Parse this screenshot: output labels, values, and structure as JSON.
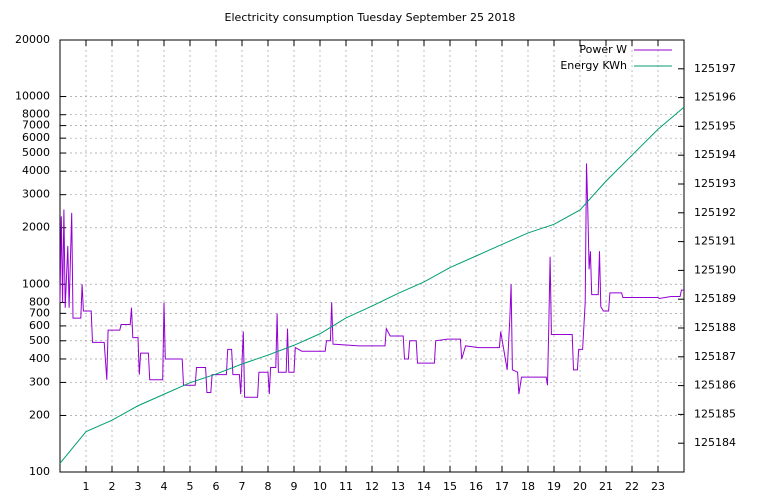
{
  "chart_data": {
    "type": "line",
    "title": "Electricity consumption Tuesday September 25 2018",
    "log_y": true,
    "grid": true,
    "legend": "top-right",
    "xlim": [
      0,
      24
    ],
    "xticks": [
      1,
      2,
      3,
      4,
      5,
      6,
      7,
      8,
      9,
      10,
      11,
      12,
      13,
      14,
      15,
      16,
      17,
      18,
      19,
      20,
      21,
      22,
      23
    ],
    "ylim": [
      100,
      20000
    ],
    "yticks": [
      100,
      200,
      300,
      400,
      500,
      600,
      700,
      800,
      1000,
      2000,
      3000,
      4000,
      5000,
      6000,
      7000,
      8000,
      10000,
      20000
    ],
    "y2lim": [
      125183,
      125198
    ],
    "y2ticks": [
      125184,
      125185,
      125186,
      125187,
      125188,
      125189,
      125190,
      125191,
      125192,
      125193,
      125194,
      125195,
      125196,
      125197
    ],
    "series": [
      {
        "name": "Power W",
        "color": "#9400d3",
        "x": [
          0.0,
          0.05,
          0.1,
          0.15,
          0.2,
          0.3,
          0.35,
          0.45,
          0.5,
          0.8,
          0.85,
          0.9,
          1.2,
          1.25,
          1.7,
          1.8,
          1.85,
          2.3,
          2.35,
          2.7,
          2.75,
          2.8,
          3.0,
          3.05,
          3.1,
          3.4,
          3.45,
          3.95,
          4.0,
          4.05,
          4.7,
          4.75,
          5.2,
          5.25,
          5.6,
          5.65,
          5.8,
          5.85,
          6.4,
          6.45,
          6.6,
          6.65,
          6.9,
          6.95,
          7.05,
          7.1,
          7.6,
          7.65,
          8.0,
          8.05,
          8.1,
          8.3,
          8.35,
          8.4,
          8.7,
          8.75,
          8.8,
          9.0,
          9.05,
          9.3,
          10.2,
          10.25,
          10.4,
          10.45,
          10.5,
          11.5,
          12.5,
          12.55,
          12.7,
          13.2,
          13.25,
          13.4,
          13.45,
          13.7,
          13.75,
          14.4,
          14.45,
          14.9,
          15.4,
          15.45,
          15.6,
          16.1,
          16.9,
          16.95,
          17.2,
          17.3,
          17.35,
          17.4,
          17.6,
          17.65,
          17.75,
          18.7,
          18.75,
          18.8,
          18.85,
          18.9,
          19.7,
          19.75,
          19.9,
          19.95,
          20.1,
          20.2,
          20.25,
          20.3,
          20.35,
          20.4,
          20.45,
          20.7,
          20.75,
          20.8,
          20.9,
          21.1,
          21.15,
          21.6,
          21.65,
          23.0,
          23.05,
          23.5,
          23.85,
          23.9,
          24.0
        ],
        "values": [
          800,
          2300,
          800,
          2500,
          750,
          1600,
          750,
          2400,
          660,
          660,
          1000,
          720,
          720,
          490,
          490,
          310,
          570,
          570,
          610,
          610,
          750,
          520,
          520,
          330,
          430,
          430,
          310,
          310,
          800,
          400,
          400,
          290,
          290,
          360,
          360,
          265,
          265,
          330,
          330,
          450,
          450,
          330,
          330,
          260,
          560,
          250,
          250,
          340,
          340,
          260,
          360,
          360,
          700,
          340,
          340,
          580,
          340,
          340,
          460,
          440,
          440,
          500,
          500,
          800,
          480,
          470,
          470,
          580,
          530,
          530,
          400,
          400,
          500,
          500,
          380,
          380,
          500,
          510,
          510,
          400,
          470,
          460,
          460,
          560,
          350,
          650,
          1000,
          350,
          340,
          260,
          320,
          320,
          290,
          600,
          1400,
          540,
          540,
          350,
          350,
          450,
          450,
          800,
          4400,
          2500,
          1200,
          1500,
          880,
          880,
          1500,
          760,
          720,
          720,
          900,
          900,
          850,
          850,
          840,
          860,
          860,
          930,
          930
        ]
      },
      {
        "name": "Energy KWh",
        "color": "#009e73",
        "axis": "y2",
        "x": [
          0,
          1,
          2,
          3,
          4,
          5,
          6,
          7,
          8,
          9,
          10,
          11,
          12,
          13,
          14,
          15,
          16,
          17,
          18,
          19,
          20,
          21,
          22,
          23,
          24
        ],
        "values": [
          125183.3,
          125184.4,
          125184.8,
          125185.3,
          125185.7,
          125186.1,
          125186.4,
          125186.75,
          125187.06,
          125187.4,
          125187.8,
          125188.35,
          125188.76,
          125189.2,
          125189.6,
          125190.1,
          125190.5,
          125190.9,
          125191.3,
          125191.6,
          125192.1,
          125193.1,
          125194.0,
          125194.9,
          125195.67
        ]
      }
    ]
  }
}
